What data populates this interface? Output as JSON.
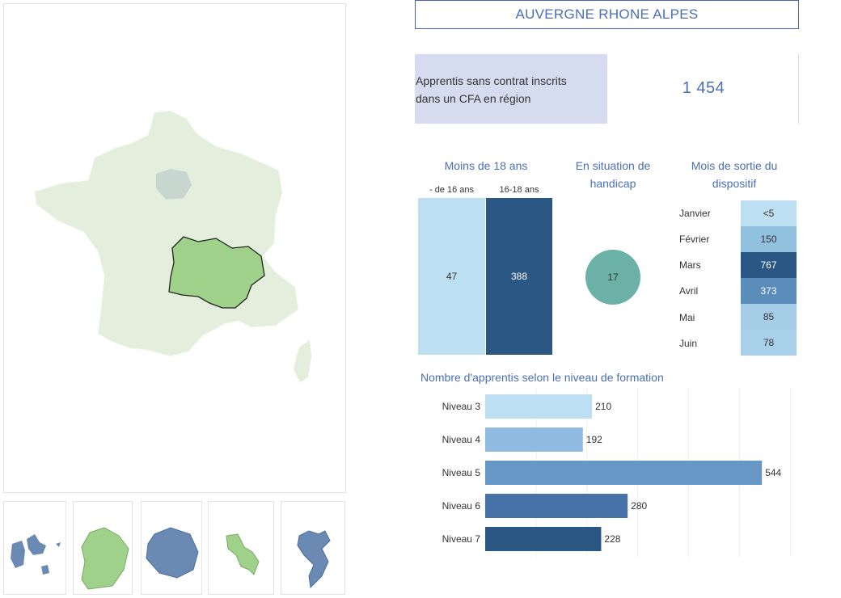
{
  "header": {
    "region_title": "AUVERGNE RHONE ALPES"
  },
  "kpi": {
    "label_line1": "Apprentis sans contrat inscrits",
    "label_line2": "dans un CFA en région",
    "value": "1 454"
  },
  "age_section": {
    "title": "Moins de 18 ans",
    "groups": [
      {
        "label": "- de 16 ans",
        "value": "47",
        "color": "#bcdff1"
      },
      {
        "label": "16-18 ans",
        "value": "388",
        "color": "#2a5783"
      }
    ]
  },
  "handicap_section": {
    "title_line1": "En situation de",
    "title_line2": "handicap",
    "value": "17",
    "color": "#6bb1a8"
  },
  "exit_section": {
    "title_line1": "Mois de sortie du",
    "title_line2": "dispositif",
    "months": [
      {
        "label": "Janvier",
        "value": "<5",
        "color": "#bcdff1"
      },
      {
        "label": "Février",
        "value": "150",
        "color": "#92c0df"
      },
      {
        "label": "Mars",
        "value": "767",
        "color": "#2a5783"
      },
      {
        "label": "Avril",
        "value": "373",
        "color": "#5b8dbb"
      },
      {
        "label": "Mai",
        "value": "85",
        "color": "#a5cde7"
      },
      {
        "label": "Juin",
        "value": "78",
        "color": "#a8d0e9"
      }
    ]
  },
  "chart_data": {
    "type": "bar",
    "orientation": "horizontal",
    "title": "Nombre d'apprentis selon le niveau de formation",
    "categories": [
      "Niveau 3",
      "Niveau 4",
      "Niveau 5",
      "Niveau 6",
      "Niveau 7"
    ],
    "values": [
      210,
      192,
      544,
      280,
      228
    ],
    "colors": [
      "#bcdff1",
      "#8fbbe0",
      "#6797c4",
      "#4672a8",
      "#2a5783"
    ],
    "xlim": [
      0,
      620
    ],
    "grid": true
  },
  "map": {
    "highlight_color": "#9fd18b",
    "base_color": "#e4eedc",
    "idf_color": "#c7d6cf",
    "dom_blue": "#6a8ab3"
  }
}
